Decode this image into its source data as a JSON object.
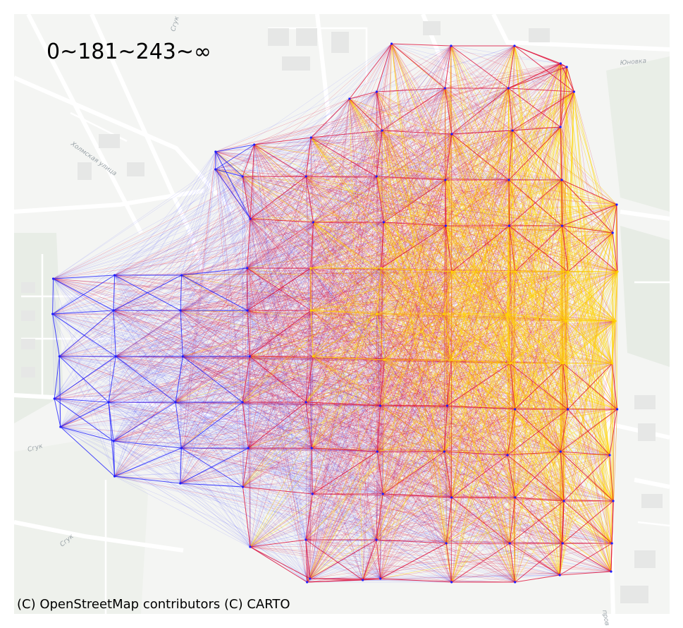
{
  "map": {
    "legend_label": "0~181~243~∞",
    "attribution": "(C) OpenStreetMap contributors (C) CARTO",
    "basemap_style": "CARTO light (Positron)",
    "street_labels": [
      "Сгук",
      "Холмская улица",
      "Юновка",
      "Сгук",
      "Сгук",
      "Сгук",
      "пров"
    ],
    "colors": {
      "low": "#1f1fff",
      "mid": "#e0103a",
      "high": "#ffd400",
      "basemap_bg": "#f2f3f1",
      "basemap_road": "#ffffff",
      "basemap_green": "#e6ece3"
    },
    "classes": [
      {
        "range": "0~181",
        "color": "#1f1fff"
      },
      {
        "range": "181~243",
        "color": "#e0103a"
      },
      {
        "range": "243~∞",
        "color": "#ffd400"
      }
    ]
  }
}
